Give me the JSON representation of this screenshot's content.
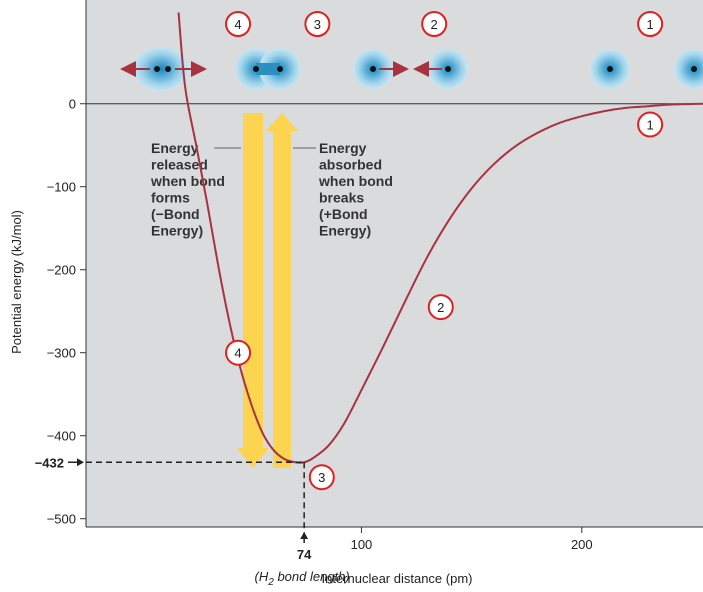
{
  "chart_data": {
    "type": "line",
    "title": "",
    "xlabel": "Internuclear distance (pm)",
    "ylabel": "Potential energy (kJ/mol)",
    "xlim": [
      -25,
      255
    ],
    "ylim": [
      -510,
      125
    ],
    "x_ticks": [
      100,
      200
    ],
    "y_ticks": [
      0,
      -100,
      -200,
      -300,
      -400,
      -500
    ],
    "y_tick_labels": [
      "0",
      "−100",
      "−200",
      "−300",
      "−400",
      "−500"
    ],
    "grid": false,
    "series": [
      {
        "name": "",
        "color": "#a83240",
        "points": [
          [
            17,
            110
          ],
          [
            20,
            20
          ],
          [
            25,
            -50
          ],
          [
            30,
            -120
          ],
          [
            35,
            -195
          ],
          [
            40,
            -262
          ],
          [
            45,
            -318
          ],
          [
            50,
            -362
          ],
          [
            55,
            -396
          ],
          [
            60,
            -417
          ],
          [
            65,
            -428
          ],
          [
            70,
            -432
          ],
          [
            74,
            -432
          ],
          [
            78,
            -427
          ],
          [
            85,
            -412
          ],
          [
            92,
            -386
          ],
          [
            100,
            -345
          ],
          [
            110,
            -292
          ],
          [
            120,
            -237
          ],
          [
            130,
            -184
          ],
          [
            140,
            -139
          ],
          [
            150,
            -102
          ],
          [
            160,
            -73
          ],
          [
            170,
            -51
          ],
          [
            180,
            -35
          ],
          [
            190,
            -23
          ],
          [
            200,
            -15
          ],
          [
            210,
            -9
          ],
          [
            220,
            -5
          ],
          [
            230,
            -3
          ],
          [
            240,
            -1
          ],
          [
            255,
            0
          ]
        ]
      }
    ],
    "marked_minimum": {
      "x": 74,
      "y": -432,
      "x_label": "74",
      "y_label": "−432",
      "x_note": "(H",
      "x_note_sub": "2",
      "x_note_end": " bond length)"
    },
    "annotations": {
      "released": [
        "Energy",
        "released",
        "when bond",
        "forms",
        "(−Bond",
        "Energy)"
      ],
      "absorbed": [
        "Energy",
        "absorbed",
        "when bond",
        "breaks",
        "(+Bond",
        "Energy)"
      ]
    },
    "curve_markers": [
      {
        "label": "1",
        "x": 231,
        "y": -25
      },
      {
        "label": "2",
        "x": 136,
        "y": -245
      },
      {
        "label": "3",
        "x": 82,
        "y": -450
      },
      {
        "label": "4",
        "x": 44,
        "y": -300
      }
    ],
    "top_markers": [
      {
        "label": "4",
        "x": 44
      },
      {
        "label": "3",
        "x": 80
      },
      {
        "label": "2",
        "x": 133
      },
      {
        "label": "1",
        "x": 231
      }
    ],
    "colors": {
      "plot_background": "#dadbdd",
      "curve": "#a83240",
      "arrow_fill": "#fdd450",
      "marker_ring": "#e02020",
      "atom_glow": "#67b9dc"
    }
  }
}
